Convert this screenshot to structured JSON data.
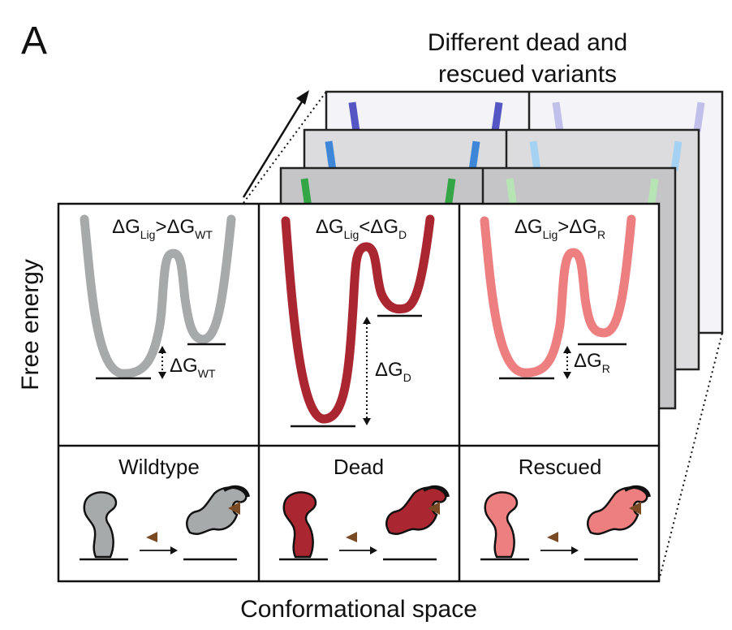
{
  "panel_letter": "A",
  "stack_title": {
    "line1": "Different dead and",
    "line2": "rescued variants"
  },
  "y_axis_label": "Free energy",
  "x_axis_label": "Conformational space",
  "columns": [
    {
      "id": "wildtype",
      "name": "Wildtype",
      "equation": {
        "a": "ΔG",
        "a_sub": "Lig",
        "op": ">",
        "b": "ΔG",
        "b_sub": "WT"
      },
      "gap_label": {
        "main": "ΔG",
        "sub": "WT"
      },
      "color": "#a7aaab"
    },
    {
      "id": "dead",
      "name": "Dead",
      "equation": {
        "a": "ΔG",
        "a_sub": "Lig",
        "op": "<",
        "b": "ΔG",
        "b_sub": "D"
      },
      "gap_label": {
        "main": "ΔG",
        "sub": "D"
      },
      "color": "#aa2630"
    },
    {
      "id": "rescued",
      "name": "Rescued",
      "equation": {
        "a": "ΔG",
        "a_sub": "Lig",
        "op": ">",
        "b": "ΔG",
        "b_sub": "R"
      },
      "gap_label": {
        "main": "ΔG",
        "sub": "R"
      },
      "color": "#ee7f80"
    }
  ],
  "stack_layers": [
    {
      "id": "back",
      "accent_color": "#5555c4",
      "accent_light": "#c0c0ea"
    },
    {
      "id": "middle",
      "accent_color": "#3d86d8",
      "accent_light": "#a5d2f2"
    },
    {
      "id": "front",
      "accent_color": "#34a646",
      "accent_light": "#b6e4b4"
    }
  ],
  "colors": {
    "ligand": "#7a4a24",
    "outline": "#111111"
  }
}
